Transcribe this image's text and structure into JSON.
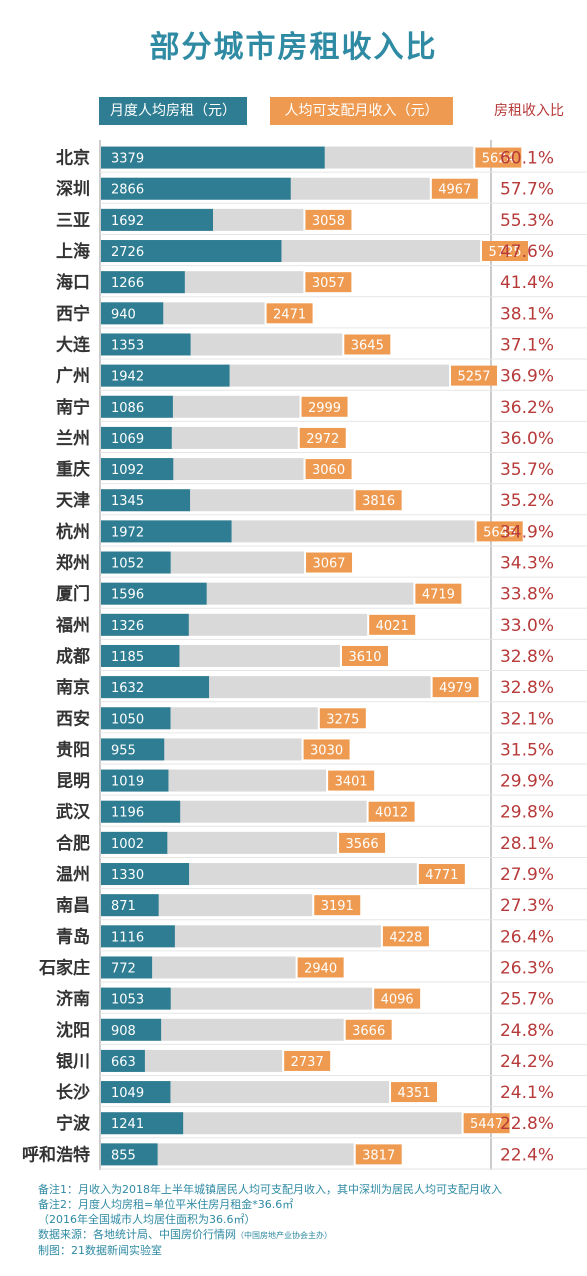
{
  "title": "部分城市房租收入比",
  "legend": {
    "rent": "月度人均房租（元）",
    "income": "人均可支配月收入（元）",
    "ratio": "房租收入比"
  },
  "colors": {
    "title": "#2f8aa3",
    "rent_bar": "#2e7d93",
    "income_bar": "#d9d9d9",
    "income_label": "#ee9a50",
    "ratio_text": "#b73a3a"
  },
  "chart_data": {
    "type": "bar",
    "orientation": "horizontal",
    "categories": [
      "北京",
      "深圳",
      "三亚",
      "上海",
      "海口",
      "西宁",
      "大连",
      "广州",
      "南宁",
      "兰州",
      "重庆",
      "天津",
      "杭州",
      "郑州",
      "厦门",
      "福州",
      "成都",
      "南京",
      "西安",
      "贵阳",
      "昆明",
      "武汉",
      "合肥",
      "温州",
      "南昌",
      "青岛",
      "石家庄",
      "济南",
      "沈阳",
      "银川",
      "长沙",
      "宁波",
      "呼和浩特"
    ],
    "series": [
      {
        "name": "月度人均房租（元）",
        "values": [
          3379,
          2866,
          1692,
          2726,
          1266,
          940,
          1353,
          1942,
          1086,
          1069,
          1092,
          1345,
          1972,
          1052,
          1596,
          1326,
          1185,
          1632,
          1050,
          955,
          1019,
          1196,
          1002,
          1330,
          871,
          1116,
          772,
          1053,
          908,
          663,
          1049,
          1241,
          855
        ]
      },
      {
        "name": "人均可支配月收入（元）",
        "values": [
          5624,
          4967,
          3058,
          5725,
          3057,
          2471,
          3645,
          5257,
          2999,
          2972,
          3060,
          3816,
          5645,
          3067,
          4719,
          4021,
          3610,
          4979,
          3275,
          3030,
          3401,
          4012,
          3566,
          4771,
          3191,
          4228,
          2940,
          4096,
          3666,
          2737,
          4351,
          5447,
          3817
        ]
      }
    ],
    "ratios": [
      "60.1%",
      "57.7%",
      "55.3%",
      "47.6%",
      "41.4%",
      "38.1%",
      "37.1%",
      "36.9%",
      "36.2%",
      "36.0%",
      "35.7%",
      "35.2%",
      "34.9%",
      "34.3%",
      "33.8%",
      "33.0%",
      "32.8%",
      "32.8%",
      "32.1%",
      "31.5%",
      "29.9%",
      "29.8%",
      "28.1%",
      "27.9%",
      "27.3%",
      "26.4%",
      "26.3%",
      "25.7%",
      "24.8%",
      "24.2%",
      "24.1%",
      "22.8%",
      "22.4%"
    ],
    "xlim": [
      0,
      5725
    ]
  },
  "notes": {
    "line1": "备注1：月收入为2018年上半年城镇居民人均可支配月收入，其中深圳为居民人均可支配月收入",
    "line2": "备注2：月度人均房租=单位平米住房月租金*36.6㎡",
    "line3": "（2016年全国城市人均居住面积为36.6㎡）",
    "line4_main": "数据来源：各地统计局、中国房价行情网",
    "line4_small": "（中国房地产业协会主办）",
    "line5": "制图：21数据新闻实验室"
  }
}
